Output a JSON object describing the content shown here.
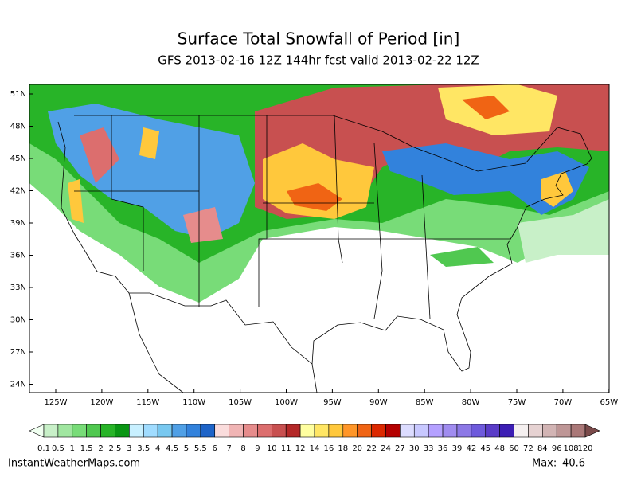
{
  "header": {
    "title": "Surface Total Snowfall of Period [in]",
    "subtitle": "GFS 2013-02-16 12Z 144hr fcst valid 2013-02-22 12Z"
  },
  "map": {
    "lat_labels": [
      "51N",
      "48N",
      "45N",
      "42N",
      "39N",
      "36N",
      "33N",
      "30N",
      "27N",
      "24N"
    ],
    "lon_labels": [
      "125W",
      "120W",
      "115W",
      "110W",
      "105W",
      "100W",
      "95W",
      "90W",
      "85W",
      "80W",
      "75W",
      "70W",
      "65W"
    ]
  },
  "colorbar": {
    "labels": [
      "0.1",
      "0.5",
      "1",
      "1.5",
      "2",
      "2.5",
      "3",
      "3.5",
      "4",
      "4.5",
      "5",
      "5.5",
      "6",
      "7",
      "8",
      "9",
      "10",
      "11",
      "12",
      "14",
      "16",
      "18",
      "20",
      "22",
      "24",
      "27",
      "30",
      "33",
      "36",
      "39",
      "42",
      "45",
      "48",
      "60",
      "72",
      "84",
      "96",
      "108",
      "120"
    ],
    "colors": [
      "#f0fff0",
      "#c8f0c8",
      "#a0e6a0",
      "#78dc78",
      "#50c850",
      "#28b428",
      "#0a9614",
      "#c8f0ff",
      "#a0dcff",
      "#78c8f0",
      "#50a0e6",
      "#3282dc",
      "#1e64c8",
      "#fadcdc",
      "#f0b4b4",
      "#e68c8c",
      "#dc6e6e",
      "#c85050",
      "#b42828",
      "#ffffa0",
      "#ffe664",
      "#ffc83c",
      "#ff9628",
      "#f06414",
      "#dc2800",
      "#b40000",
      "#dcdcff",
      "#c8c8ff",
      "#b4a0ff",
      "#a08cf0",
      "#8c78e6",
      "#6e5adc",
      "#5a3cc8",
      "#3c1eb4",
      "#f5f0f0",
      "#e6d2d2",
      "#d2b4b4",
      "#be9696",
      "#aa7878",
      "#7a4a4a"
    ]
  },
  "footer": {
    "site": "InstantWeatherMaps.com",
    "max_label": "Max:",
    "max_value": 40.6
  }
}
